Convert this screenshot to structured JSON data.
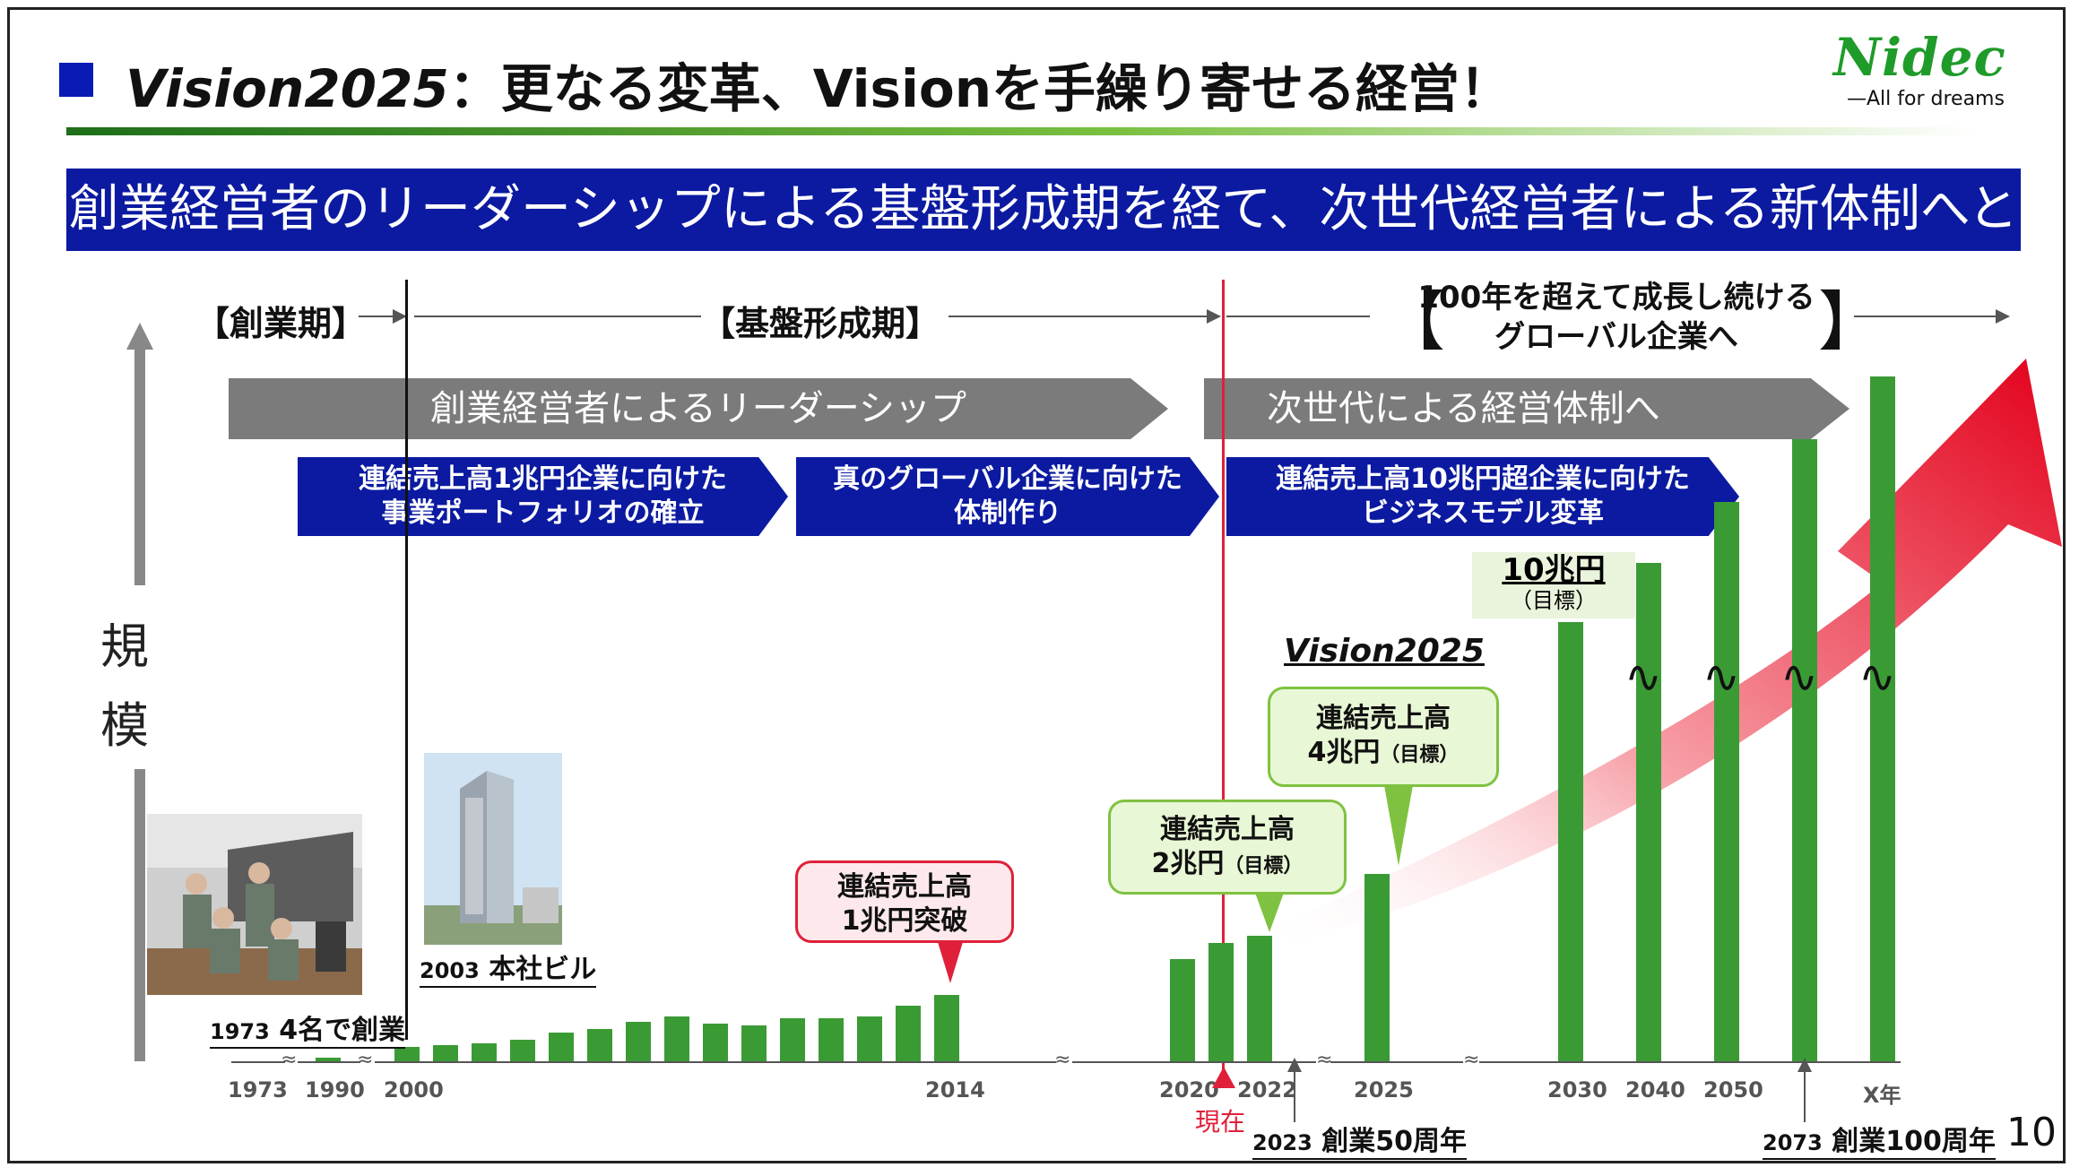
{
  "slide": {
    "title_italic": "Vision2025",
    "title_rest": "：更なる変革、Visionを手繰り寄せる経営！",
    "logo": "Nidec",
    "tagline": "—All for dreams",
    "banner": "創業経営者のリーダーシップによる基盤形成期を経て、次世代経営者による新体制へと脱皮",
    "page_number": "10",
    "accent_colors": {
      "blue": "#0b1aa0",
      "green": "#3a9b34",
      "red": "#e0203a",
      "gray": "#7b7b7b"
    }
  },
  "phases": [
    {
      "label": "【創業期】"
    },
    {
      "label": "【基盤形成期】"
    },
    {
      "label_line1": "100年を超えて成長し続ける",
      "label_line2": "グローバル企業へ"
    }
  ],
  "gray_arrows": [
    {
      "label": "創業経営者によるリーダーシップ"
    },
    {
      "label": "次世代による経営体制へ"
    }
  ],
  "blue_arrows": [
    {
      "line1": "連結売上高1兆円企業に向けた",
      "line2": "事業ポートフォリオの確立"
    },
    {
      "line1": "真のグローバル企業に向けた",
      "line2": "体制作り"
    },
    {
      "line1": "連結売上高10兆円超企業に向けた",
      "line2": "ビジネスモデル変革"
    }
  ],
  "axis": {
    "ylabel_1": "規",
    "ylabel_2": "模"
  },
  "years": [
    "1973",
    "1990",
    "2000",
    "2014",
    "2020",
    "2022",
    "2025",
    "2030",
    "2040",
    "2050",
    "X年"
  ],
  "current_marker": "現在",
  "callouts": [
    {
      "line1": "連結売上高",
      "line2": "1兆円突破"
    },
    {
      "line1": "連結売上高",
      "line2_main": "2兆円",
      "line2_sub": "（目標）"
    },
    {
      "line1": "連結売上高",
      "line2_main": "4兆円",
      "line2_sub": "（目標）"
    }
  ],
  "target_10": {
    "main": "10兆円",
    "sub": "（目標）"
  },
  "vision_label": "Vision2025",
  "notes": [
    {
      "year": "1973",
      "text": "4名で創業"
    },
    {
      "year": "2003",
      "text": "本社ビル"
    },
    {
      "year": "2023",
      "text": "創業50周年"
    },
    {
      "year": "2073",
      "text": "創業100周年"
    }
  ],
  "gap_mark": "≈",
  "wave_mark": "∿"
}
